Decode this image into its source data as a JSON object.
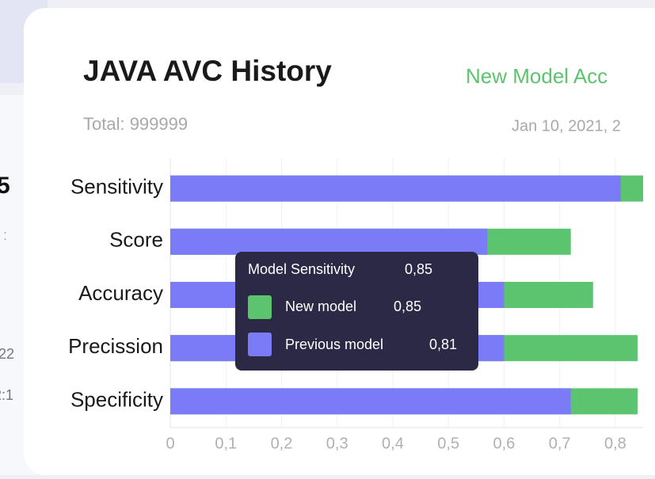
{
  "background": {
    "fragments": [
      "5",
      ":",
      "22",
      "2:1"
    ]
  },
  "card": {
    "subtitle": "Total: 999999",
    "accuracy_label": "New Model Acc",
    "date": "Jan 10, 2021, 2"
  },
  "chart_data": {
    "type": "bar",
    "orientation": "horizontal",
    "title": "JAVA AVC History",
    "categories": [
      "Sensitivity",
      "Score",
      "Accuracy",
      "Precission",
      "Specificity"
    ],
    "series": [
      {
        "name": "New model",
        "color": "#5cc46e",
        "values": [
          0.85,
          0.72,
          0.76,
          0.84,
          0.84
        ]
      },
      {
        "name": "Previous model",
        "color": "#7b7bf7",
        "values": [
          0.81,
          0.57,
          0.6,
          0.6,
          0.72
        ]
      }
    ],
    "xlim": [
      0,
      0.85
    ],
    "xticks": [
      0,
      {
        "value": 0.1,
        "label": "0,1"
      },
      {
        "value": 0.2,
        "label": "0,2"
      },
      {
        "value": 0.3,
        "label": "0,3"
      },
      {
        "value": 0.4,
        "label": "0,4"
      },
      {
        "value": 0.5,
        "label": "0,5"
      },
      {
        "value": 0.6,
        "label": "0,6"
      },
      {
        "value": 0.7,
        "label": "0,7"
      },
      {
        "value": 0.8,
        "label": "0,8"
      }
    ],
    "grid": true,
    "tooltip": {
      "title": "Model Sensitivity",
      "value_label": "0,85",
      "series_value_labels": [
        "0,85",
        "0,81"
      ]
    }
  }
}
